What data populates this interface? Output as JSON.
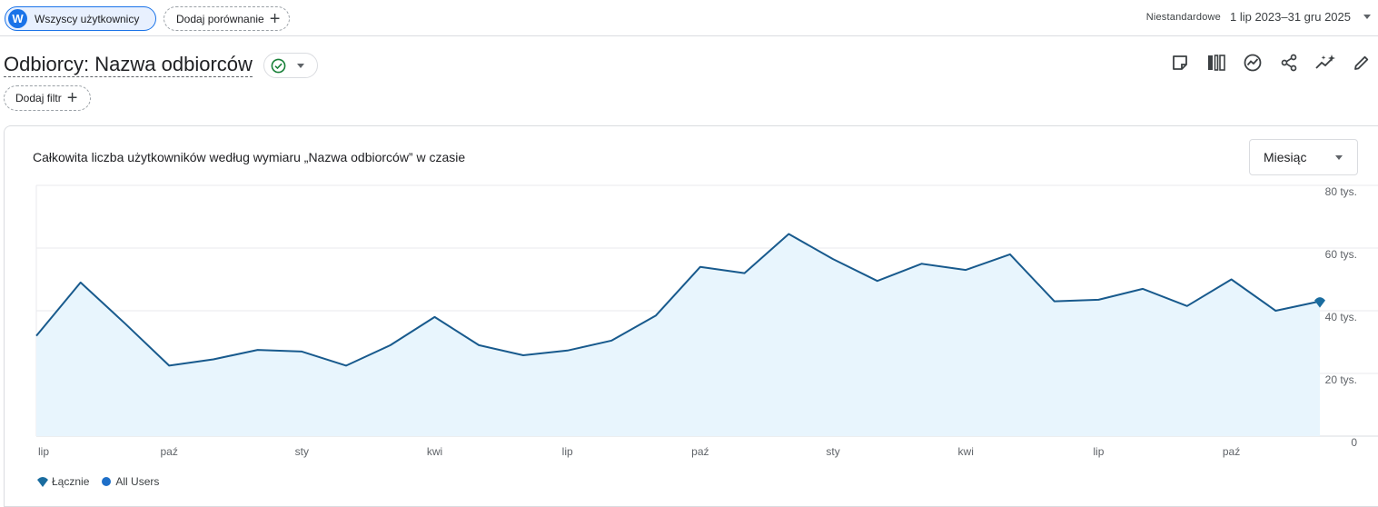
{
  "header": {
    "segment_avatar": "W",
    "segment_label": "Wszyscy użytkownicy",
    "compare_label": "Dodaj porównanie",
    "date_custom": "Niestandardowe",
    "date_range": "1 lip 2023–31 gru 2025"
  },
  "report": {
    "title": "Odbiorcy: Nazwa odbiorców",
    "filter_label": "Dodaj filtr",
    "toolbar_icons": [
      "note-icon",
      "compare-columns-icon",
      "insights-icon",
      "share-icon",
      "sparkle-trend-icon",
      "edit-icon"
    ]
  },
  "card": {
    "title": "Całkowita liczba użytkowników według wymiaru „Nazwa odbiorców” w czasie",
    "period": "Miesiąc"
  },
  "chart_data": {
    "type": "area",
    "x": [
      "2023-07",
      "2023-08",
      "2023-09",
      "2023-10",
      "2023-11",
      "2023-12",
      "2024-01",
      "2024-02",
      "2024-03",
      "2024-04",
      "2024-05",
      "2024-06",
      "2024-07",
      "2024-08",
      "2024-09",
      "2024-10",
      "2024-11",
      "2024-12",
      "2025-01",
      "2025-02",
      "2025-03",
      "2025-04",
      "2025-05",
      "2025-06",
      "2025-07",
      "2025-08",
      "2025-09",
      "2025-10",
      "2025-11",
      "2025-12"
    ],
    "x_tick_labels": [
      {
        "index": 0,
        "label": "lip"
      },
      {
        "index": 3,
        "label": "paź"
      },
      {
        "index": 6,
        "label": "sty"
      },
      {
        "index": 9,
        "label": "kwi"
      },
      {
        "index": 12,
        "label": "lip"
      },
      {
        "index": 15,
        "label": "paź"
      },
      {
        "index": 18,
        "label": "sty"
      },
      {
        "index": 21,
        "label": "kwi"
      },
      {
        "index": 24,
        "label": "lip"
      },
      {
        "index": 27,
        "label": "paź"
      }
    ],
    "y_ticks": [
      {
        "value": 0,
        "label": "0"
      },
      {
        "value": 20000,
        "label": "20 tys."
      },
      {
        "value": 40000,
        "label": "40 tys."
      },
      {
        "value": 60000,
        "label": "60 tys."
      },
      {
        "value": 80000,
        "label": "80 tys."
      }
    ],
    "ylim": [
      0,
      80000
    ],
    "series": [
      {
        "name": "Łącznie",
        "color": "#185a8d",
        "fill": "#e8f5fd",
        "values": [
          32000,
          49000,
          36000,
          22500,
          24500,
          27500,
          27000,
          22500,
          29000,
          38000,
          29000,
          25800,
          27300,
          30500,
          38500,
          54000,
          52000,
          64500,
          56500,
          49500,
          55000,
          53000,
          58000,
          43000,
          43500,
          47000,
          41500,
          50000,
          40000,
          43000
        ]
      }
    ],
    "legend": [
      {
        "label": "Łącznie",
        "marker": "pin"
      },
      {
        "label": "All Users",
        "marker": "dot",
        "color": "#1e6fc8"
      }
    ],
    "legend_position": "bottom-left",
    "grid": true
  }
}
